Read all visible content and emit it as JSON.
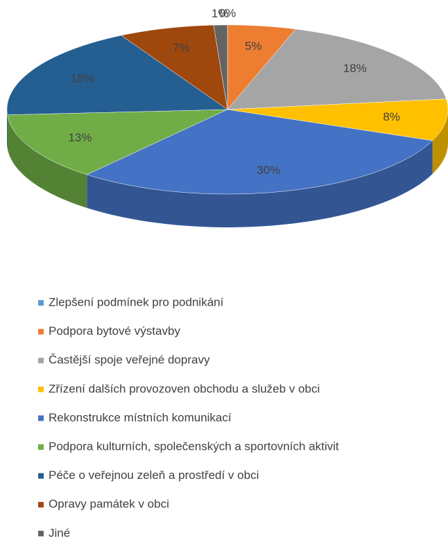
{
  "chart_data": {
    "type": "pie",
    "categories": [
      "Zlepšení podmínek pro podnikání",
      "Podpora bytové výstavby",
      "Častější spoje veřejné dopravy",
      "Zřízení dalších provozoven obchodu a služeb v obci",
      "Rekonstrukce místních komunikací",
      "Podpora kulturních, společenských a sportovních aktivit",
      "Péče o veřejnou zeleň a prostředí v obci",
      "Opravy památek v obci",
      "Jiné"
    ],
    "values": [
      0,
      5,
      18,
      8,
      30,
      13,
      18,
      7,
      1
    ],
    "value_labels": [
      "0%",
      "5%",
      "18%",
      "8%",
      "30%",
      "13%",
      "18%",
      "7%",
      "1%"
    ],
    "colors": [
      "#5b9bd5",
      "#ed7d31",
      "#a5a5a5",
      "#ffc000",
      "#4472c4",
      "#70ad47",
      "#255e91",
      "#9e480e",
      "#636363"
    ],
    "legend": "bottom"
  }
}
